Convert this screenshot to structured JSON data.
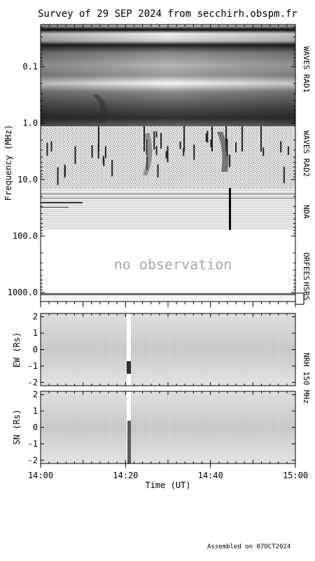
{
  "title": "Survey of 29 SEP 2024 from secchirh.obspm.fr",
  "footer": "Assembled on 07OCT2024",
  "no_observation_text": "no observation",
  "chart_data": [
    {
      "type": "heatmap",
      "name": "dynamic-spectrum",
      "ylabel": "Frequency (MHz)",
      "yscale": "log",
      "ylim": [
        0.02,
        1500
      ],
      "ytick_labels": [
        "0.1",
        "1.0",
        "10.0",
        "100.0",
        "1000.0"
      ],
      "ytick_values": [
        0.1,
        1,
        10,
        100,
        1000
      ],
      "instrument_labels": [
        "WAVES RAD1",
        "WAVES RAD2",
        "NDA",
        "ORFEES",
        "HSRS"
      ],
      "bands": [
        {
          "instrument": "WAVES RAD1",
          "range_mhz": [
            0.02,
            1.0
          ]
        },
        {
          "instrument": "WAVES RAD2",
          "range_mhz": [
            1.0,
            16
          ]
        },
        {
          "instrument": "NDA",
          "range_mhz": [
            16,
            80
          ]
        },
        {
          "instrument": "ORFEES",
          "range_mhz": [
            140,
            1000
          ],
          "status": "no observation"
        },
        {
          "instrument": "HSRS",
          "range_mhz": [
            1000,
            1500
          ]
        }
      ]
    },
    {
      "type": "heatmap",
      "name": "nrh-ew",
      "ylabel": "EW (Rs)",
      "ylim": [
        -2.2,
        2.2
      ],
      "ytick_labels": [
        "2",
        "1",
        "0",
        "-1",
        "-2"
      ],
      "ytick_values": [
        2,
        1,
        0,
        -1,
        -2
      ]
    },
    {
      "type": "heatmap",
      "name": "nrh-sn",
      "ylabel": "SN (Rs)",
      "ylim": [
        -2.2,
        2.2
      ],
      "ytick_labels": [
        "2",
        "1",
        "0",
        "-1",
        "-2"
      ],
      "ytick_values": [
        2,
        1,
        0,
        -1,
        -2
      ]
    }
  ],
  "nrh_label": "NRH 150 MHz",
  "xaxis": {
    "label": "Time (UT)",
    "tick_labels": [
      "14:00",
      "14:20",
      "14:40",
      "15:00"
    ],
    "range": [
      "14:00",
      "15:00"
    ]
  }
}
